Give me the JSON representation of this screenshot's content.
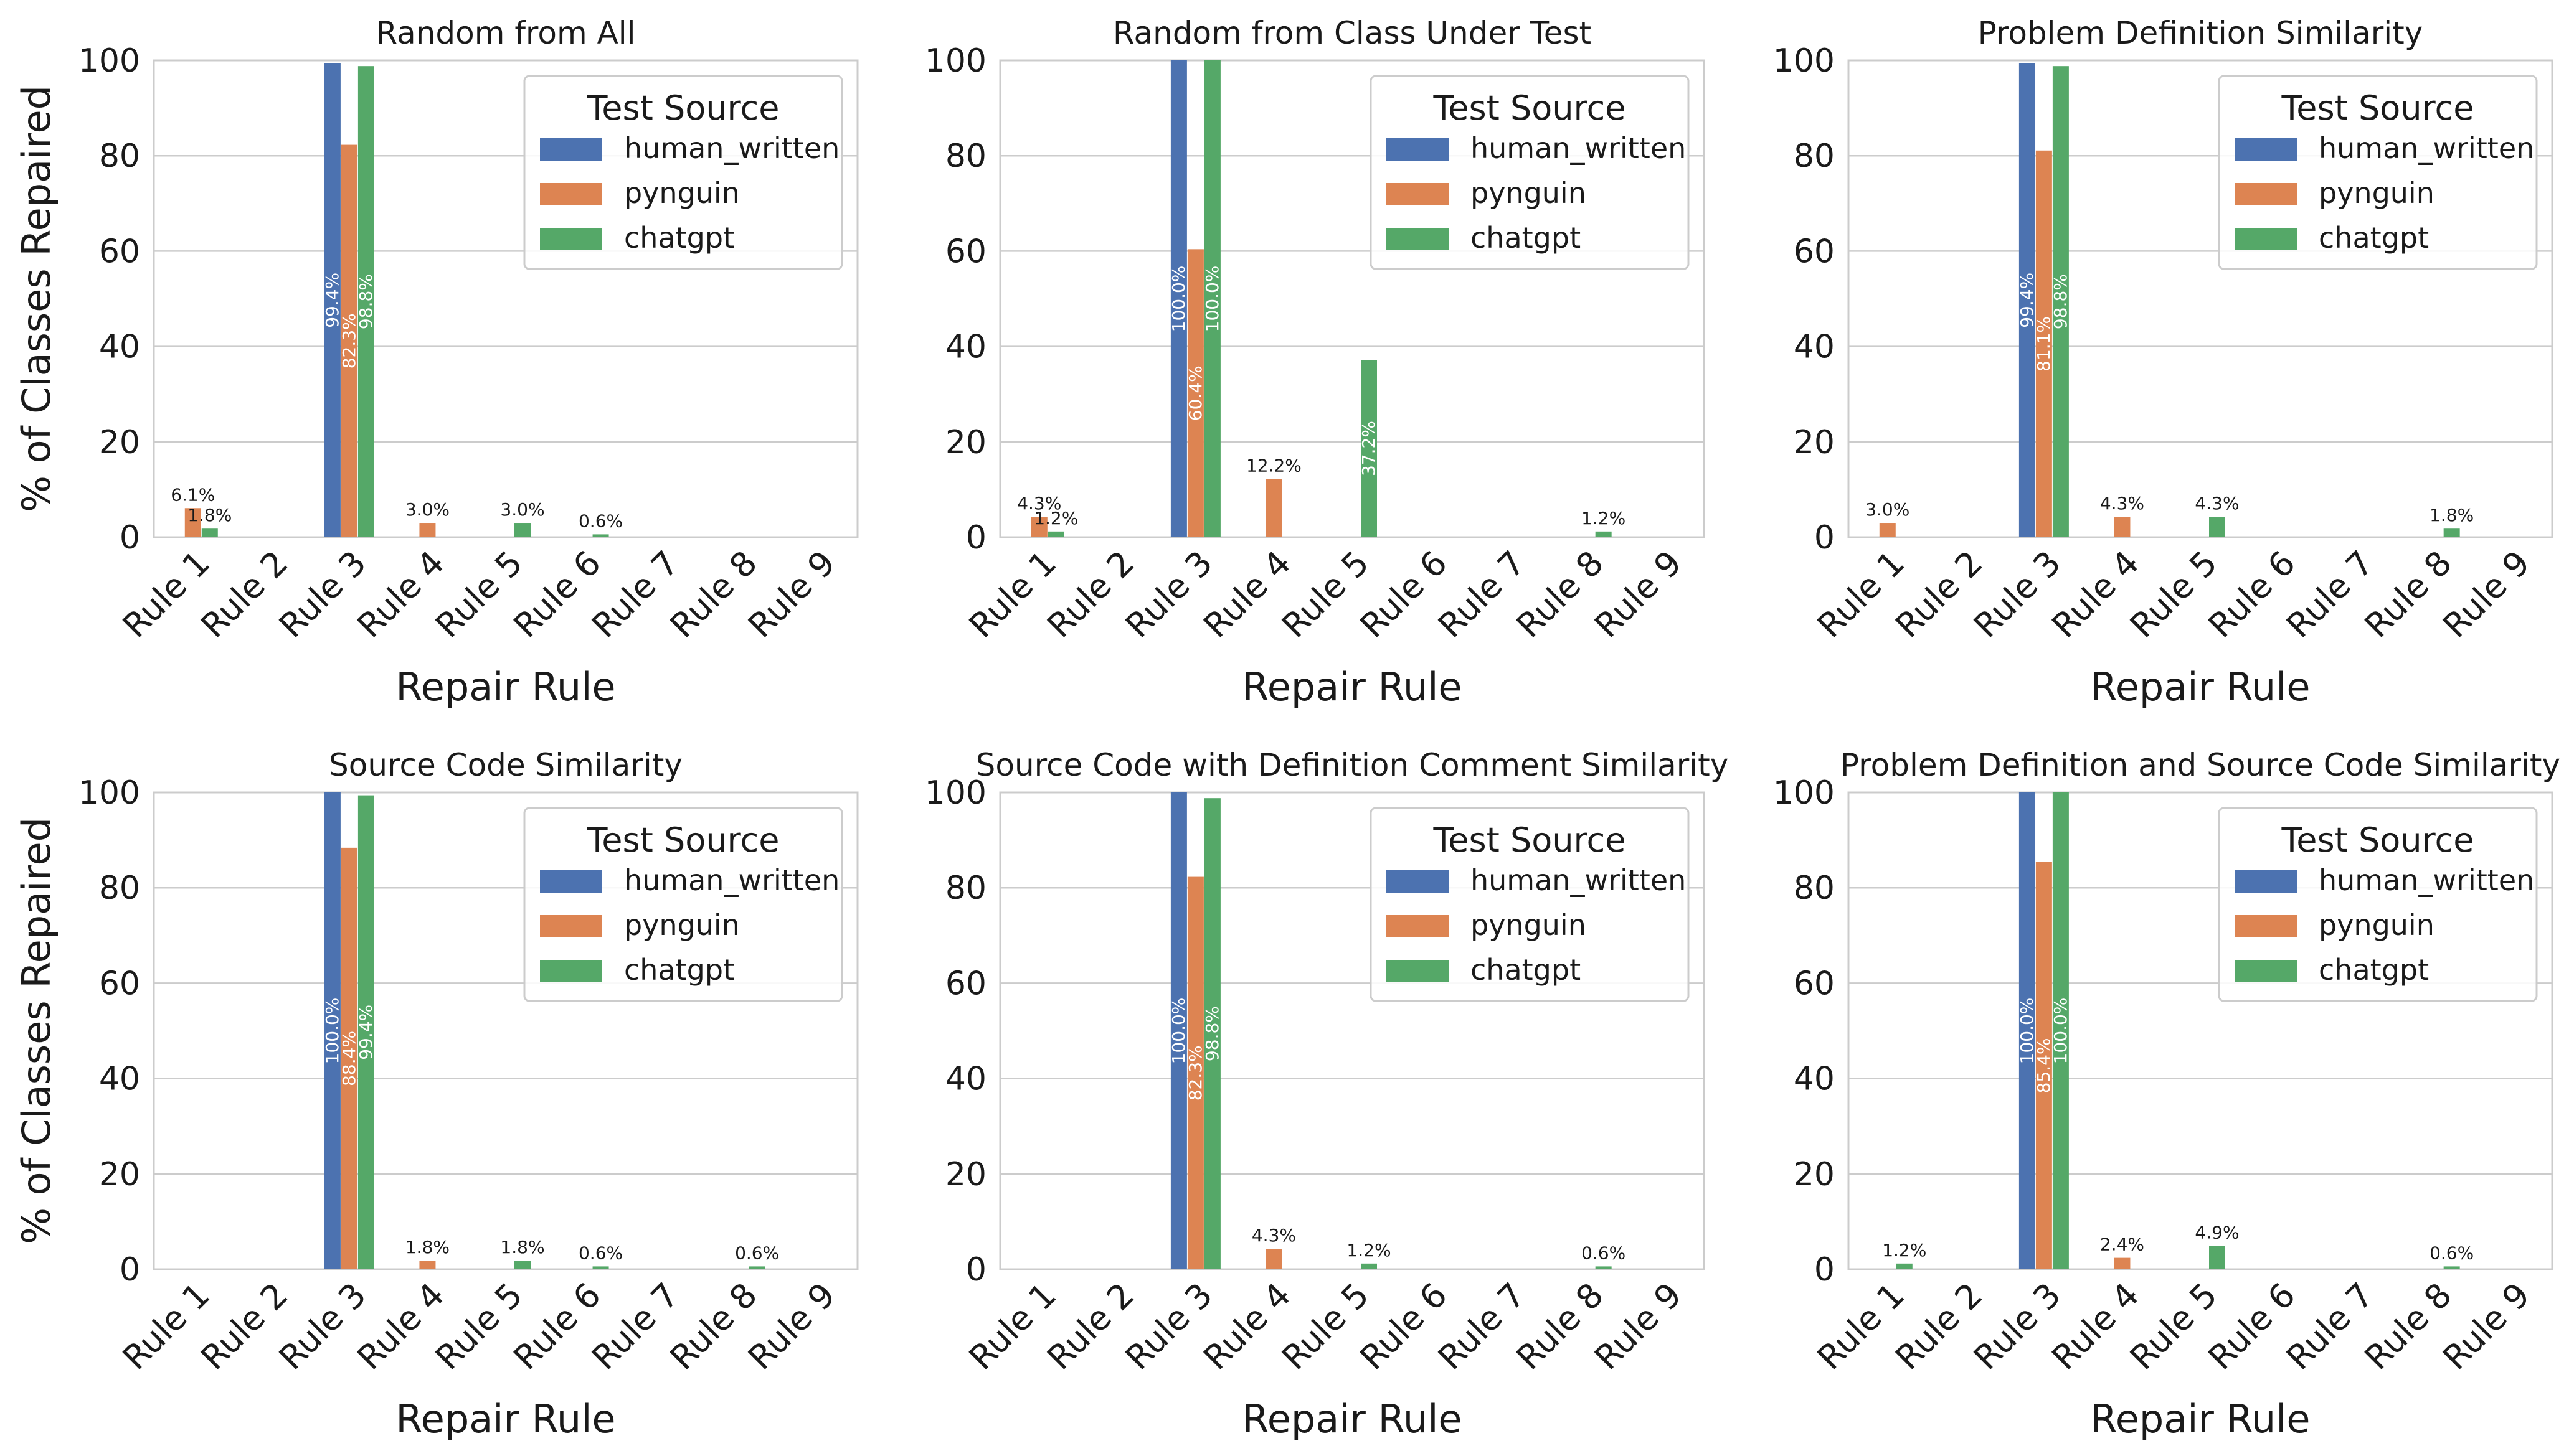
{
  "colors": {
    "human_written": "#4c72b0",
    "pynguin": "#dd8452",
    "chatgpt": "#55a868",
    "grid": "#cccccc",
    "frame": "#cccccc",
    "text": "#1a1a1a"
  },
  "chart_data": [
    {
      "type": "bar",
      "title": "Random from All",
      "xlabel": "Repair Rule",
      "ylabel": "% of Classes Repaired",
      "ylim": [
        0,
        100
      ],
      "yticks": [
        "0",
        "20",
        "40",
        "60",
        "80",
        "100"
      ],
      "grid": true,
      "legend": {
        "title": "Test Source",
        "placement": "top-right"
      },
      "categories": [
        "Rule 1",
        "Rule 2",
        "Rule 3",
        "Rule 4",
        "Rule 5",
        "Rule 6",
        "Rule 7",
        "Rule 8",
        "Rule 9"
      ],
      "series": [
        {
          "name": "human_written",
          "values": [
            0,
            0,
            99.4,
            0,
            0,
            0,
            0,
            0,
            0
          ],
          "labels": [
            "",
            "",
            "99.4%",
            "",
            "",
            "",
            "",
            "",
            ""
          ]
        },
        {
          "name": "pynguin",
          "values": [
            6.1,
            0,
            82.3,
            3.0,
            0,
            0,
            0,
            0,
            0
          ],
          "labels": [
            "6.1%",
            "",
            "82.3%",
            "3.0%",
            "",
            "",
            "",
            "",
            ""
          ]
        },
        {
          "name": "chatgpt",
          "values": [
            1.8,
            0,
            98.8,
            0,
            3.0,
            0.6,
            0,
            0,
            0
          ],
          "labels": [
            "1.8%",
            "",
            "98.8%",
            "",
            "3.0%",
            "0.6%",
            "",
            "",
            ""
          ]
        }
      ]
    },
    {
      "type": "bar",
      "title": "Random from Class Under Test",
      "xlabel": "Repair Rule",
      "ylabel": "",
      "ylim": [
        0,
        100
      ],
      "yticks": [
        "0",
        "20",
        "40",
        "60",
        "80",
        "100"
      ],
      "grid": true,
      "legend": {
        "title": "Test Source",
        "placement": "top-right"
      },
      "categories": [
        "Rule 1",
        "Rule 2",
        "Rule 3",
        "Rule 4",
        "Rule 5",
        "Rule 6",
        "Rule 7",
        "Rule 8",
        "Rule 9"
      ],
      "series": [
        {
          "name": "human_written",
          "values": [
            0,
            0,
            100.0,
            0,
            0,
            0,
            0,
            0,
            0
          ],
          "labels": [
            "",
            "",
            "100.0%",
            "",
            "",
            "",
            "",
            "",
            ""
          ]
        },
        {
          "name": "pynguin",
          "values": [
            4.3,
            0,
            60.4,
            12.2,
            0,
            0,
            0,
            0,
            0
          ],
          "labels": [
            "4.3%",
            "",
            "60.4%",
            "12.2%",
            "",
            "",
            "",
            "",
            ""
          ]
        },
        {
          "name": "chatgpt",
          "values": [
            1.2,
            0,
            100.0,
            0,
            37.2,
            0,
            0,
            1.2,
            0
          ],
          "labels": [
            "1.2%",
            "",
            "100.0%",
            "",
            "37.2%",
            "",
            "",
            "1.2%",
            ""
          ]
        }
      ]
    },
    {
      "type": "bar",
      "title": "Problem Definition Similarity",
      "xlabel": "Repair Rule",
      "ylabel": "",
      "ylim": [
        0,
        100
      ],
      "yticks": [
        "0",
        "20",
        "40",
        "60",
        "80",
        "100"
      ],
      "grid": true,
      "legend": {
        "title": "Test Source",
        "placement": "top-right"
      },
      "categories": [
        "Rule 1",
        "Rule 2",
        "Rule 3",
        "Rule 4",
        "Rule 5",
        "Rule 6",
        "Rule 7",
        "Rule 8",
        "Rule 9"
      ],
      "series": [
        {
          "name": "human_written",
          "values": [
            0,
            0,
            99.4,
            0,
            0,
            0,
            0,
            0,
            0
          ],
          "labels": [
            "",
            "",
            "99.4%",
            "",
            "",
            "",
            "",
            "",
            ""
          ]
        },
        {
          "name": "pynguin",
          "values": [
            3.0,
            0,
            81.1,
            4.3,
            0,
            0,
            0,
            0,
            0
          ],
          "labels": [
            "3.0%",
            "",
            "81.1%",
            "4.3%",
            "",
            "",
            "",
            "",
            ""
          ]
        },
        {
          "name": "chatgpt",
          "values": [
            0,
            0,
            98.8,
            0,
            4.3,
            0,
            0,
            1.8,
            0
          ],
          "labels": [
            "",
            "",
            "98.8%",
            "",
            "4.3%",
            "",
            "",
            "1.8%",
            ""
          ]
        }
      ]
    },
    {
      "type": "bar",
      "title": "Source Code Similarity",
      "xlabel": "Repair Rule",
      "ylabel": "% of Classes Repaired",
      "ylim": [
        0,
        100
      ],
      "yticks": [
        "0",
        "20",
        "40",
        "60",
        "80",
        "100"
      ],
      "grid": true,
      "legend": {
        "title": "Test Source",
        "placement": "top-right"
      },
      "categories": [
        "Rule 1",
        "Rule 2",
        "Rule 3",
        "Rule 4",
        "Rule 5",
        "Rule 6",
        "Rule 7",
        "Rule 8",
        "Rule 9"
      ],
      "series": [
        {
          "name": "human_written",
          "values": [
            0,
            0,
            100.0,
            0,
            0,
            0,
            0,
            0,
            0
          ],
          "labels": [
            "",
            "",
            "100.0%",
            "",
            "",
            "",
            "",
            "",
            ""
          ]
        },
        {
          "name": "pynguin",
          "values": [
            0,
            0,
            88.4,
            1.8,
            0,
            0,
            0,
            0,
            0
          ],
          "labels": [
            "",
            "",
            "88.4%",
            "1.8%",
            "",
            "",
            "",
            "",
            ""
          ]
        },
        {
          "name": "chatgpt",
          "values": [
            0,
            0,
            99.4,
            0,
            1.8,
            0.6,
            0,
            0.6,
            0
          ],
          "labels": [
            "",
            "",
            "99.4%",
            "",
            "1.8%",
            "0.6%",
            "",
            "0.6%",
            ""
          ]
        }
      ]
    },
    {
      "type": "bar",
      "title": "Source Code with Definition Comment Similarity",
      "xlabel": "Repair Rule",
      "ylabel": "",
      "ylim": [
        0,
        100
      ],
      "yticks": [
        "0",
        "20",
        "40",
        "60",
        "80",
        "100"
      ],
      "grid": true,
      "legend": {
        "title": "Test Source",
        "placement": "top-right"
      },
      "categories": [
        "Rule 1",
        "Rule 2",
        "Rule 3",
        "Rule 4",
        "Rule 5",
        "Rule 6",
        "Rule 7",
        "Rule 8",
        "Rule 9"
      ],
      "series": [
        {
          "name": "human_written",
          "values": [
            0,
            0,
            100.0,
            0,
            0,
            0,
            0,
            0,
            0
          ],
          "labels": [
            "",
            "",
            "100.0%",
            "",
            "",
            "",
            "",
            "",
            ""
          ]
        },
        {
          "name": "pynguin",
          "values": [
            0,
            0,
            82.3,
            4.3,
            0,
            0,
            0,
            0,
            0
          ],
          "labels": [
            "",
            "",
            "82.3%",
            "4.3%",
            "",
            "",
            "",
            "",
            ""
          ]
        },
        {
          "name": "chatgpt",
          "values": [
            0,
            0,
            98.8,
            0,
            1.2,
            0,
            0,
            0.6,
            0
          ],
          "labels": [
            "",
            "",
            "98.8%",
            "",
            "1.2%",
            "",
            "",
            "0.6%",
            ""
          ]
        }
      ]
    },
    {
      "type": "bar",
      "title": "Problem Definition and Source Code Similarity",
      "xlabel": "Repair Rule",
      "ylabel": "",
      "ylim": [
        0,
        100
      ],
      "yticks": [
        "0",
        "20",
        "40",
        "60",
        "80",
        "100"
      ],
      "grid": true,
      "legend": {
        "title": "Test Source",
        "placement": "top-right"
      },
      "categories": [
        "Rule 1",
        "Rule 2",
        "Rule 3",
        "Rule 4",
        "Rule 5",
        "Rule 6",
        "Rule 7",
        "Rule 8",
        "Rule 9"
      ],
      "series": [
        {
          "name": "human_written",
          "values": [
            0,
            0,
            100.0,
            0,
            0,
            0,
            0,
            0,
            0
          ],
          "labels": [
            "",
            "",
            "100.0%",
            "",
            "",
            "",
            "",
            "",
            ""
          ]
        },
        {
          "name": "pynguin",
          "values": [
            0,
            0,
            85.4,
            2.4,
            0,
            0,
            0,
            0,
            0
          ],
          "labels": [
            "",
            "",
            "85.4%",
            "2.4%",
            "",
            "",
            "",
            "",
            ""
          ]
        },
        {
          "name": "chatgpt",
          "values": [
            1.2,
            0,
            100.0,
            0,
            4.9,
            0,
            0,
            0.6,
            0
          ],
          "labels": [
            "1.2%",
            "",
            "100.0%",
            "",
            "4.9%",
            "",
            "",
            "0.6%",
            ""
          ]
        }
      ]
    }
  ]
}
